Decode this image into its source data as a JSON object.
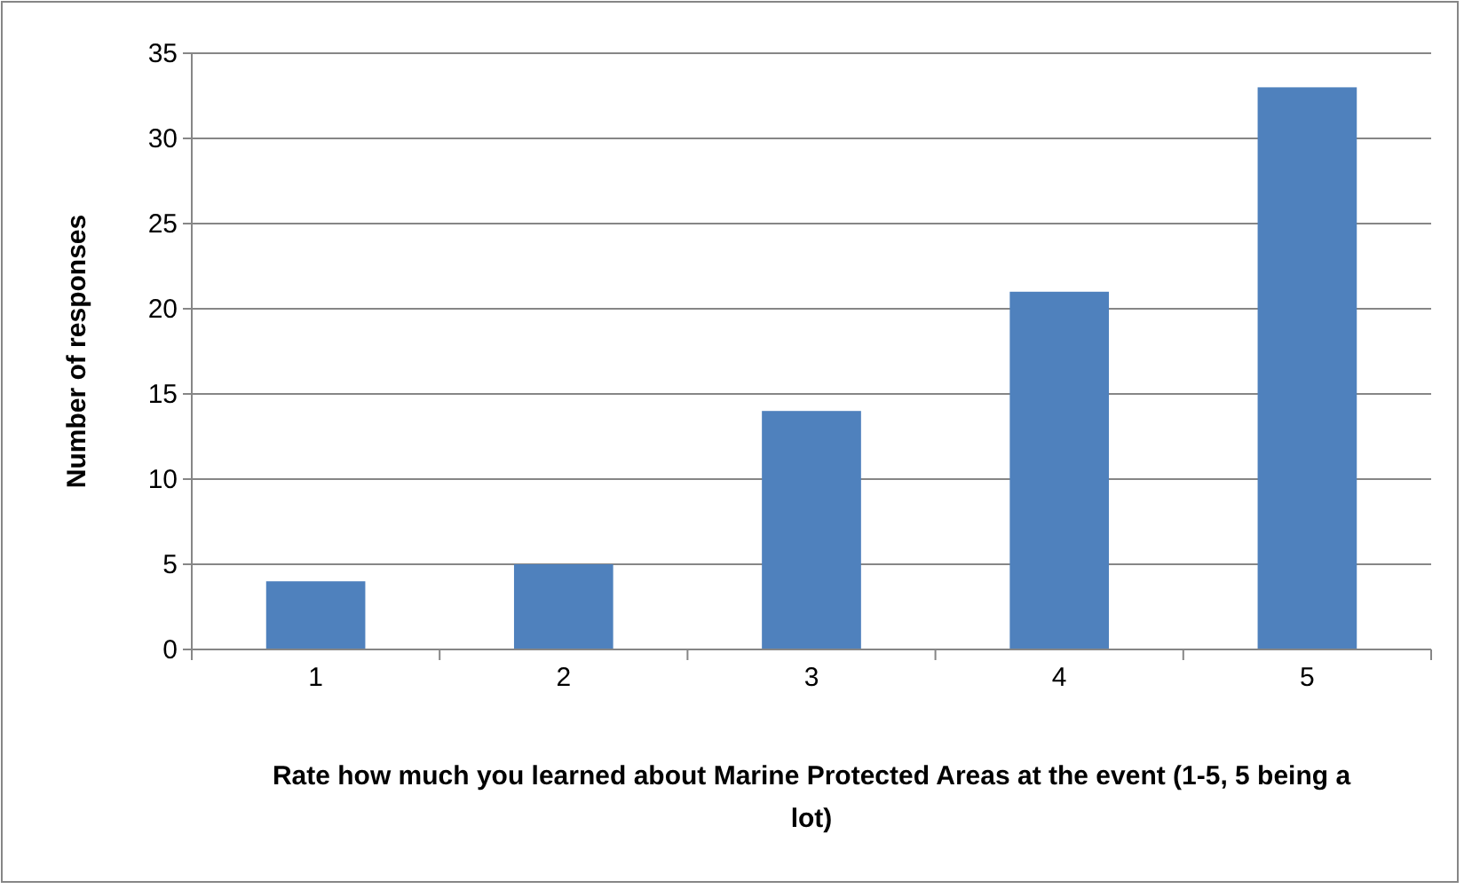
{
  "chart_data": {
    "type": "bar",
    "categories": [
      "1",
      "2",
      "3",
      "4",
      "5"
    ],
    "values": [
      4,
      5,
      14,
      21,
      33
    ],
    "color": "#4f81bd",
    "ylim": [
      0,
      35
    ],
    "yticks": [
      0,
      5,
      10,
      15,
      20,
      25,
      30,
      35
    ],
    "grid": "y",
    "xlabel": "Rate how much you learned about Marine Protected Areas at the event (1-5, 5 being a lot)",
    "ylabel": "Number of responses"
  }
}
